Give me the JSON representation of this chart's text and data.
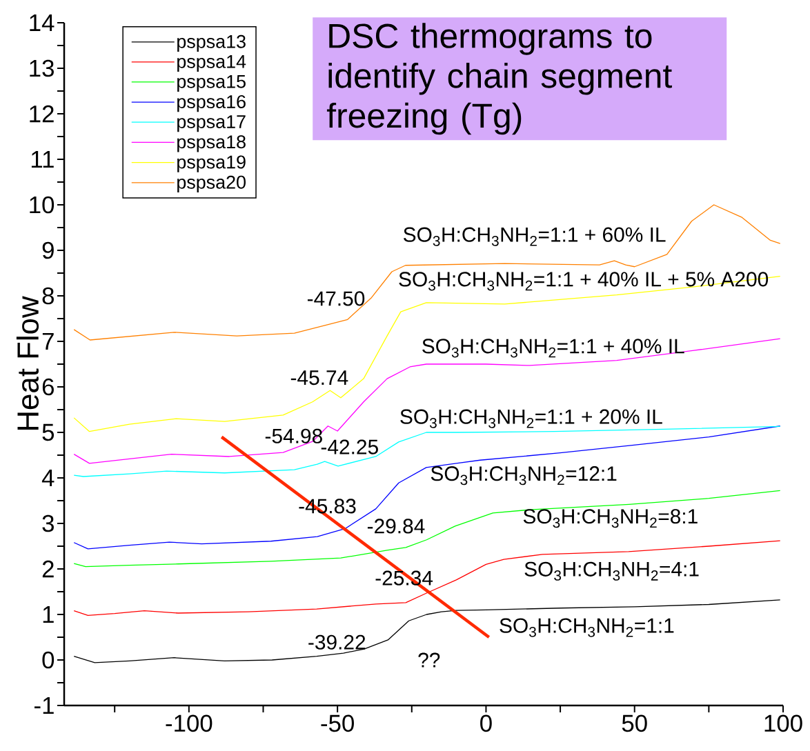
{
  "chart_data": {
    "type": "line",
    "title": "DSC thermograms to identify chain segment freezing (Tg)",
    "ylabel": "Heat Flow",
    "xlim": [
      -142,
      100
    ],
    "ylim": [
      -1,
      14
    ],
    "xticks": [
      {
        "value": -125,
        "label": null
      },
      -100,
      {
        "value": -75,
        "label": null
      },
      -50,
      {
        "value": -25,
        "label": null
      },
      0,
      {
        "value": 25,
        "label": null
      },
      50,
      {
        "value": 75,
        "label": null
      },
      100
    ],
    "yticks": [
      -1,
      {
        "value": -0.5,
        "label": null
      },
      0,
      {
        "value": 0.5,
        "label": null
      },
      1,
      {
        "value": 1.5,
        "label": null
      },
      2,
      {
        "value": 2.5,
        "label": null
      },
      3,
      {
        "value": 3.5,
        "label": null
      },
      4,
      {
        "value": 4.5,
        "label": null
      },
      5,
      {
        "value": 5.5,
        "label": null
      },
      6,
      {
        "value": 6.5,
        "label": null
      },
      7,
      {
        "value": 7.5,
        "label": null
      },
      8,
      {
        "value": 8.5,
        "label": null
      },
      9,
      {
        "value": 9.5,
        "label": null
      },
      10,
      {
        "value": 10.5,
        "label": null
      },
      11,
      {
        "value": 11.5,
        "label": null
      },
      12,
      {
        "value": 12.5,
        "label": null
      },
      13,
      {
        "value": 13.5,
        "label": null
      },
      14
    ],
    "legend": "top left",
    "series": [
      {
        "name": "pspsa13",
        "color": "#000000",
        "x": [
          -138.7,
          -131.7,
          -120,
          -105,
          -88,
          -72,
          -57,
          -48,
          -41,
          -33,
          -26,
          -20,
          -15,
          -10,
          0,
          25,
          50,
          75,
          99
        ],
        "values": [
          0.08,
          -0.06,
          -0.02,
          0.05,
          -0.02,
          0.0,
          0.08,
          0.15,
          0.24,
          0.44,
          0.86,
          1.0,
          1.06,
          1.09,
          1.1,
          1.14,
          1.17,
          1.22,
          1.32
        ]
      },
      {
        "name": "pspsa14",
        "color": "#ff0000",
        "x": [
          -138.7,
          -134,
          -125,
          -115,
          -103.6,
          -80,
          -57,
          -37,
          -27,
          -20,
          -10,
          0,
          6,
          19,
          48,
          75,
          99
        ],
        "values": [
          1.08,
          0.98,
          1.02,
          1.08,
          1.03,
          1.06,
          1.12,
          1.23,
          1.26,
          1.47,
          1.76,
          2.1,
          2.21,
          2.32,
          2.38,
          2.5,
          2.62
        ]
      },
      {
        "name": "pspsa15",
        "color": "#00ff00",
        "x": [
          -138.7,
          -134.8,
          -120,
          -103.6,
          -72.4,
          -48.9,
          -33.3,
          -27,
          -20,
          -10.4,
          2.3,
          14.7,
          48.2,
          75,
          99
        ],
        "values": [
          2.12,
          2.05,
          2.08,
          2.11,
          2.17,
          2.24,
          2.41,
          2.47,
          2.64,
          2.94,
          3.23,
          3.3,
          3.42,
          3.55,
          3.72
        ]
      },
      {
        "name": "pspsa16",
        "color": "#0000ff",
        "x": [
          -138.7,
          -134,
          -120,
          -106.6,
          -95.7,
          -72.4,
          -56.8,
          -47.3,
          -37.1,
          -29.4,
          -20.1,
          -10,
          -2,
          25,
          48.2,
          75,
          99
        ],
        "values": [
          2.58,
          2.44,
          2.52,
          2.59,
          2.55,
          2.61,
          2.71,
          2.89,
          3.32,
          3.89,
          4.23,
          4.32,
          4.39,
          4.55,
          4.71,
          4.9,
          5.14
        ]
      },
      {
        "name": "pspsa17",
        "color": "#00ffff",
        "x": [
          -138.7,
          -135.5,
          -120,
          -107.5,
          -88,
          -64.5,
          -56.8,
          -54.3,
          -49.8,
          -37.1,
          -29.4,
          -20.1,
          -10,
          23,
          60,
          99
        ],
        "values": [
          4.06,
          4.03,
          4.09,
          4.15,
          4.11,
          4.18,
          4.3,
          4.36,
          4.26,
          4.47,
          4.79,
          5.0,
          5.0,
          5.02,
          5.07,
          5.13
        ]
      },
      {
        "name": "pspsa18",
        "color": "#ff00ff",
        "x": [
          -138.7,
          -133.5,
          -120,
          -105.9,
          -86.4,
          -68.3,
          -58.4,
          -53.2,
          -50,
          -41.2,
          -33.3,
          -25.6,
          -20.1,
          0,
          14.7,
          44,
          70,
          99
        ],
        "values": [
          4.52,
          4.32,
          4.42,
          4.52,
          4.47,
          4.56,
          4.8,
          5.14,
          5.03,
          5.67,
          6.18,
          6.44,
          6.5,
          6.5,
          6.47,
          6.58,
          6.8,
          7.06
        ]
      },
      {
        "name": "pspsa19",
        "color": "#ffff00",
        "x": [
          -138.7,
          -133.5,
          -120,
          -104.3,
          -88,
          -68.3,
          -58.4,
          -52.5,
          -48.9,
          -41.2,
          -33.3,
          -28.7,
          -20.1,
          6.3,
          44,
          70,
          99
        ],
        "values": [
          5.32,
          5.02,
          5.18,
          5.3,
          5.24,
          5.38,
          5.67,
          5.92,
          5.76,
          6.18,
          7.12,
          7.65,
          7.85,
          7.82,
          8.02,
          8.2,
          8.43
        ]
      },
      {
        "name": "pspsa20",
        "color": "#ff8000",
        "x": [
          -138.7,
          -133.3,
          -105,
          -83.9,
          -64.5,
          -53.6,
          -46.6,
          -38.7,
          -31.7,
          -27.1,
          6.3,
          38.2,
          43.2,
          47,
          50,
          60.9,
          69.2,
          76.7,
          86,
          95.7,
          99
        ],
        "values": [
          7.26,
          7.03,
          7.2,
          7.12,
          7.18,
          7.36,
          7.48,
          7.95,
          8.53,
          8.67,
          8.71,
          8.68,
          8.77,
          8.68,
          8.64,
          8.91,
          9.64,
          10.0,
          9.73,
          9.22,
          9.15
        ]
      },
      {
        "color": "#ff2a00",
        "x": [
          -89,
          1
        ],
        "values": [
          4.9,
          0.5
        ]
      }
    ],
    "annotations": [
      "-47.50",
      "-45.74",
      "-54.98",
      "-42.25",
      "-45.83",
      "-29.84",
      "-25.34",
      "-39.22",
      "??",
      "SO$_{3}$H:CH$_{3}$NH$_{2}$=1:1 + 60% IL",
      "SO$_{3}$H:CH$_{3}$NH$_{2}$=1:1 + 40% IL + 5% A200",
      "SO$_{3}$H:CH$_{3}$NH$_{2}$=1:1 + 40% IL",
      "SO$_{3}$H:CH$_{3}$NH$_{2}$=1:1 + 20% IL",
      "SO$_{3}$H:CH$_{3}$NH$_{2}$=12:1",
      "SO$_{3}$H:CH$_{3}$NH$_{2}$=8:1",
      "SO$_{3}$H:CH$_{3}$NH$_{2}$=4:1",
      "SO$_{3}$H:CH$_{3}$NH$_{2}$=1:1"
    ]
  }
}
